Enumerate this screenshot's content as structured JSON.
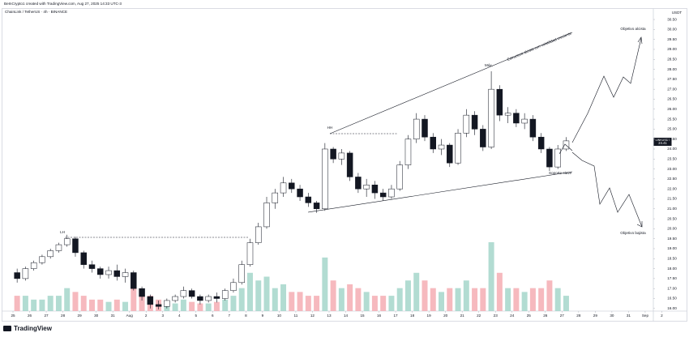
{
  "header": {
    "caption": "BeInCrypto1 created with TradingView.com, Aug 27, 2025 14:33 UTC-3",
    "logo": "TradingView"
  },
  "chart_data": {
    "type": "candlestick",
    "title": "ChainLink / TetherUS · 4h · BINANCE",
    "y_unit": "USDT",
    "symbol": "LINKUSDT",
    "colors": {
      "up_fill": "#ffffff",
      "down_fill": "#131722",
      "wick": "#131722",
      "volume_up": "#9fd3c7",
      "volume_down": "#f4a7ae"
    },
    "grid": false,
    "xlim": [
      -0.78,
      38.49
    ],
    "ylim": [
      15.87,
      30.99
    ],
    "xticks": [
      {
        "value": 0,
        "label": "25"
      },
      {
        "value": 1,
        "label": "26"
      },
      {
        "value": 2,
        "label": "27"
      },
      {
        "value": 3,
        "label": "28"
      },
      {
        "value": 4,
        "label": "29"
      },
      {
        "value": 5,
        "label": "30"
      },
      {
        "value": 6,
        "label": "31"
      },
      {
        "value": 7,
        "label": "Aug"
      },
      {
        "value": 8,
        "label": "2"
      },
      {
        "value": 9,
        "label": "3"
      },
      {
        "value": 10,
        "label": "4"
      },
      {
        "value": 11,
        "label": "5"
      },
      {
        "value": 12,
        "label": "6"
      },
      {
        "value": 13,
        "label": "7"
      },
      {
        "value": 14,
        "label": "8"
      },
      {
        "value": 15,
        "label": "9"
      },
      {
        "value": 16,
        "label": "10"
      },
      {
        "value": 17,
        "label": "11"
      },
      {
        "value": 18,
        "label": "12"
      },
      {
        "value": 19,
        "label": "13"
      },
      {
        "value": 20,
        "label": "14"
      },
      {
        "value": 21,
        "label": "15"
      },
      {
        "value": 22,
        "label": "16"
      },
      {
        "value": 23,
        "label": "17"
      },
      {
        "value": 24,
        "label": "18"
      },
      {
        "value": 25,
        "label": "19"
      },
      {
        "value": 26,
        "label": "20"
      },
      {
        "value": 27,
        "label": "21"
      },
      {
        "value": 28,
        "label": "22"
      },
      {
        "value": 29,
        "label": "23"
      },
      {
        "value": 30,
        "label": "24"
      },
      {
        "value": 31,
        "label": "25"
      },
      {
        "value": 32,
        "label": "26"
      },
      {
        "value": 33,
        "label": "27"
      },
      {
        "value": 34,
        "label": "28"
      },
      {
        "value": 35,
        "label": "29"
      },
      {
        "value": 36,
        "label": "30"
      },
      {
        "value": 37,
        "label": "31"
      },
      {
        "value": 38,
        "label": "Sep"
      },
      {
        "value": 39,
        "label": "2"
      }
    ],
    "yticks": [
      {
        "value": 16,
        "label": "16.00"
      },
      {
        "value": 16.5,
        "label": "16.50"
      },
      {
        "value": 17,
        "label": "17.00"
      },
      {
        "value": 17.5,
        "label": "17.50"
      },
      {
        "value": 18,
        "label": "18.00"
      },
      {
        "value": 18.5,
        "label": "18.50"
      },
      {
        "value": 19,
        "label": "19.00"
      },
      {
        "value": 19.5,
        "label": "19.50"
      },
      {
        "value": 20,
        "label": "20.00"
      },
      {
        "value": 20.5,
        "label": "20.50"
      },
      {
        "value": 21,
        "label": "21.00"
      },
      {
        "value": 21.5,
        "label": "21.50"
      },
      {
        "value": 22,
        "label": "22.00"
      },
      {
        "value": 22.5,
        "label": "22.50"
      },
      {
        "value": 23,
        "label": "23.00"
      },
      {
        "value": 23.5,
        "label": "23.50"
      },
      {
        "value": 24,
        "label": "24.00"
      },
      {
        "value": 24.5,
        "label": "24.50"
      },
      {
        "value": 25,
        "label": "25.00"
      },
      {
        "value": 25.5,
        "label": "25.50"
      },
      {
        "value": 26,
        "label": "26.00"
      },
      {
        "value": 26.5,
        "label": "26.50"
      },
      {
        "value": 27,
        "label": "27.00"
      },
      {
        "value": 27.5,
        "label": "27.50"
      },
      {
        "value": 28,
        "label": "28.00"
      },
      {
        "value": 28.5,
        "label": "28.50"
      },
      {
        "value": 29,
        "label": "29.00"
      },
      {
        "value": 29.5,
        "label": "29.50"
      },
      {
        "value": 30,
        "label": "30.00"
      },
      {
        "value": 30.5,
        "label": "30.50"
      }
    ],
    "x": [
      0,
      0.5,
      1,
      1.5,
      2,
      2.5,
      3,
      3.5,
      4,
      4.5,
      5,
      5.5,
      6,
      6.5,
      7,
      7.5,
      8,
      8.5,
      9,
      9.5,
      10,
      10.5,
      11,
      11.5,
      12,
      12.5,
      13,
      13.5,
      14,
      14.5,
      15,
      15.5,
      16,
      16.5,
      17,
      17.5,
      18,
      18.5,
      19,
      19.5,
      20,
      20.5,
      21,
      21.5,
      22,
      22.5,
      23,
      23.5,
      24,
      24.5,
      25,
      25.5,
      26,
      26.5,
      27,
      27.5,
      28,
      28.5,
      29,
      29.5,
      30,
      30.5,
      31,
      31.5,
      32,
      32.5,
      33
    ],
    "open": [
      17.8,
      17.5,
      18.0,
      18.3,
      18.6,
      18.9,
      19.2,
      19.5,
      18.8,
      18.2,
      18.0,
      17.7,
      17.9,
      17.6,
      17.8,
      17.0,
      16.6,
      16.2,
      16.1,
      16.4,
      16.6,
      16.9,
      16.6,
      16.4,
      16.6,
      16.5,
      16.9,
      17.3,
      18.2,
      19.3,
      20.1,
      21.3,
      21.8,
      22.3,
      22.0,
      21.6,
      21.3,
      21.0,
      24.0,
      23.5,
      23.8,
      22.6,
      22.0,
      22.2,
      21.8,
      21.6,
      22.0,
      23.2,
      24.5,
      25.5,
      24.6,
      24.0,
      24.2,
      23.3,
      24.8,
      25.7,
      25.0,
      24.1,
      27.0,
      25.7,
      25.8,
      25.3,
      25.5,
      24.6,
      24.0,
      23.1,
      24.0
    ],
    "high": [
      18.0,
      18.1,
      18.4,
      18.7,
      19.0,
      19.3,
      19.7,
      19.6,
      18.9,
      18.4,
      18.1,
      18.1,
      18.2,
      18.0,
      17.9,
      17.1,
      16.7,
      16.4,
      16.5,
      16.7,
      17.1,
      17.0,
      16.7,
      16.7,
      16.8,
      17.0,
      17.5,
      18.4,
      19.5,
      20.3,
      21.6,
      22.0,
      22.6,
      22.5,
      22.2,
      21.8,
      21.4,
      24.3,
      24.1,
      24.0,
      23.9,
      22.8,
      22.5,
      22.4,
      22.0,
      22.2,
      23.4,
      24.7,
      25.8,
      25.7,
      24.8,
      24.5,
      24.3,
      25.0,
      26.0,
      25.9,
      25.2,
      27.9,
      27.2,
      26.1,
      26.0,
      25.8,
      25.7,
      24.8,
      24.1,
      24.2,
      24.6
    ],
    "low": [
      17.3,
      17.4,
      17.9,
      18.2,
      18.5,
      18.8,
      19.1,
      18.6,
      18.0,
      17.8,
      17.5,
      17.5,
      17.4,
      17.3,
      16.9,
      16.4,
      16.0,
      15.95,
      16.0,
      16.3,
      16.5,
      16.5,
      16.2,
      16.3,
      16.3,
      16.4,
      16.8,
      17.2,
      18.1,
      19.2,
      20.0,
      21.0,
      21.6,
      21.8,
      21.4,
      21.1,
      20.8,
      20.9,
      23.3,
      23.2,
      22.4,
      21.8,
      21.6,
      21.5,
      21.4,
      21.5,
      21.9,
      23.0,
      24.3,
      24.4,
      23.8,
      23.7,
      23.1,
      23.2,
      24.6,
      24.7,
      23.9,
      24.0,
      25.4,
      25.3,
      25.1,
      25.0,
      24.4,
      23.8,
      22.9,
      23.0,
      23.9
    ],
    "close": [
      17.5,
      18.0,
      18.3,
      18.6,
      18.9,
      19.2,
      19.5,
      18.8,
      18.2,
      18.0,
      17.7,
      17.9,
      17.6,
      17.8,
      17.0,
      16.6,
      16.2,
      16.1,
      16.4,
      16.6,
      16.9,
      16.6,
      16.4,
      16.6,
      16.5,
      16.9,
      17.3,
      18.2,
      19.3,
      20.1,
      21.3,
      21.8,
      22.3,
      22.0,
      21.6,
      21.3,
      21.0,
      24.0,
      23.5,
      23.8,
      22.6,
      22.0,
      22.2,
      21.8,
      21.6,
      22.0,
      23.2,
      24.5,
      25.5,
      24.6,
      24.0,
      24.2,
      23.3,
      24.8,
      25.7,
      25.0,
      24.1,
      27.0,
      25.7,
      25.8,
      25.3,
      25.5,
      24.6,
      24.0,
      23.1,
      24.0,
      24.41
    ],
    "volume": [
      2,
      2,
      1.5,
      1.5,
      2,
      2,
      3,
      2.5,
      2,
      1.5,
      1.5,
      1.2,
      1.5,
      1.2,
      3,
      2.5,
      2,
      1.5,
      1,
      1,
      1.5,
      1.2,
      1,
      1,
      1.2,
      1.5,
      2,
      3,
      5,
      4,
      4.5,
      3,
      3.5,
      2.5,
      2.5,
      2,
      2,
      7,
      4,
      3,
      3.5,
      3,
      2.5,
      2,
      2,
      2,
      3,
      4,
      5,
      4,
      3,
      2.5,
      3,
      3,
      4,
      3,
      3,
      9,
      5,
      3,
      3,
      2.5,
      3,
      3,
      4,
      3,
      2
    ],
    "annotations": {
      "lh": "LH",
      "hh": "HH",
      "max": "Máx.",
      "structure": "Estructura alcista con volatilidad creciente",
      "support": "Soporte clave",
      "bull_target": "Objetivo alcista",
      "bear_target": "Objetivo bajista"
    }
  }
}
